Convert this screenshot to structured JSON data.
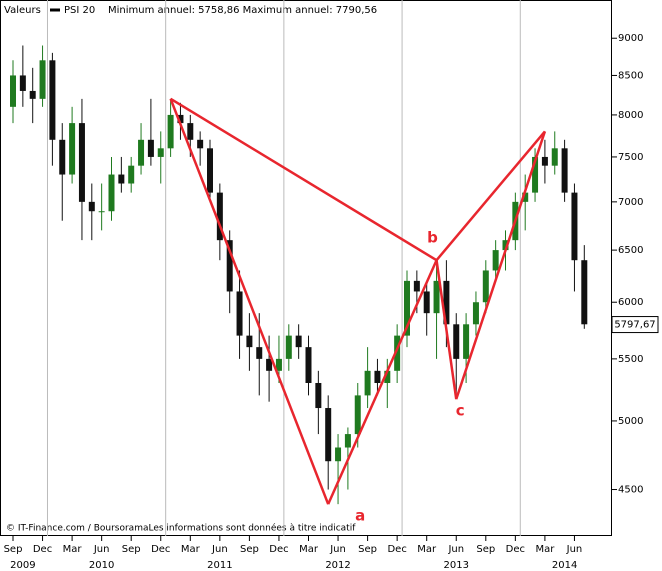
{
  "chart_data": {
    "type": "candlestick",
    "header": "Valeurs",
    "legend": "PSI 20",
    "subtitle": "Minimum annuel: 5758,86 Maximum annuel: 7790,56",
    "footer": "© IT-Finance.com / BoursoramaLes informations sont données à titre indicatif",
    "up_color": "#1f7a1f",
    "down_color": "#111111",
    "log_scale": true,
    "x": [
      "2009-09",
      "2009-10",
      "2009-11",
      "2009-12",
      "2010-01",
      "2010-02",
      "2010-03",
      "2010-04",
      "2010-05",
      "2010-06",
      "2010-07",
      "2010-08",
      "2010-09",
      "2010-10",
      "2010-11",
      "2010-12",
      "2011-01",
      "2011-02",
      "2011-03",
      "2011-04",
      "2011-05",
      "2011-06",
      "2011-07",
      "2011-08",
      "2011-09",
      "2011-10",
      "2011-11",
      "2011-12",
      "2012-01",
      "2012-02",
      "2012-03",
      "2012-04",
      "2012-05",
      "2012-06",
      "2012-07",
      "2012-08",
      "2012-09",
      "2012-10",
      "2012-11",
      "2012-12",
      "2013-01",
      "2013-02",
      "2013-03",
      "2013-04",
      "2013-05",
      "2013-06",
      "2013-07",
      "2013-08",
      "2013-09",
      "2013-10",
      "2013-11",
      "2013-12",
      "2014-01",
      "2014-02",
      "2014-03",
      "2014-04",
      "2014-05",
      "2014-06",
      "2014-07"
    ],
    "open": [
      8100,
      8500,
      8300,
      8200,
      8700,
      7700,
      7300,
      7900,
      7000,
      6900,
      6900,
      7300,
      7200,
      7400,
      7700,
      7500,
      7600,
      8000,
      7900,
      7700,
      7600,
      7100,
      6600,
      6100,
      5700,
      5600,
      5500,
      5400,
      5500,
      5700,
      5600,
      5300,
      5100,
      4700,
      4800,
      4900,
      5200,
      5400,
      5300,
      5400,
      5700,
      6200,
      6100,
      5900,
      6200,
      5800,
      5500,
      5800,
      6000,
      6300,
      6500,
      6600,
      7000,
      7100,
      7500,
      7400,
      7600,
      7100,
      6400
    ],
    "high": [
      8700,
      8900,
      8600,
      8900,
      8800,
      7900,
      8100,
      8200,
      7200,
      7200,
      7500,
      7500,
      7500,
      7900,
      8200,
      7800,
      8200,
      8150,
      8000,
      7800,
      7700,
      7200,
      6700,
      6300,
      5900,
      5900,
      5700,
      5700,
      5800,
      5800,
      5700,
      5400,
      5200,
      4900,
      4950,
      5300,
      5600,
      5500,
      5500,
      5800,
      6300,
      6300,
      6200,
      6350,
      6400,
      5900,
      5900,
      6100,
      6400,
      6600,
      6700,
      7100,
      7300,
      7600,
      7700,
      7800,
      7700,
      7200,
      6550
    ],
    "low": [
      7900,
      8100,
      7900,
      8100,
      7400,
      6800,
      7200,
      6600,
      6600,
      6700,
      6800,
      7100,
      7100,
      7300,
      7400,
      7200,
      7500,
      7700,
      7500,
      7400,
      7000,
      6400,
      5900,
      5500,
      5400,
      5200,
      5150,
      5300,
      5400,
      5500,
      5200,
      4900,
      4500,
      4400,
      4500,
      4800,
      5100,
      5200,
      5100,
      5300,
      5600,
      5900,
      5700,
      5500,
      5600,
      5200,
      5300,
      5700,
      5900,
      6200,
      6300,
      6500,
      6700,
      7000,
      7200,
      7300,
      7000,
      6100,
      5760
    ],
    "close": [
      8500,
      8300,
      8200,
      8700,
      7700,
      7300,
      7900,
      7000,
      6900,
      6900,
      7300,
      7200,
      7400,
      7700,
      7500,
      7600,
      8000,
      7900,
      7700,
      7600,
      7100,
      6600,
      6100,
      5700,
      5600,
      5500,
      5400,
      5500,
      5700,
      5600,
      5300,
      5100,
      4700,
      4800,
      4900,
      5200,
      5400,
      5300,
      5400,
      5700,
      6200,
      6100,
      5900,
      6200,
      5800,
      5500,
      5800,
      6000,
      6300,
      6500,
      6600,
      7000,
      7100,
      7500,
      7400,
      7600,
      7100,
      6400,
      5800
    ],
    "last_value": {
      "value": 5797.67,
      "label": "5797,67"
    },
    "ylim": [
      4190,
      9370
    ],
    "yticks": [
      4500,
      5000,
      5500,
      6000,
      6500,
      7000,
      7500,
      8000,
      8500,
      9000
    ],
    "xticks": [
      {
        "value": "2009-09",
        "label": "Sep"
      },
      {
        "value": "2009-12",
        "label": "Dec"
      },
      {
        "value": "2010-03",
        "label": "Mar"
      },
      {
        "value": "2010-06",
        "label": "Jun"
      },
      {
        "value": "2010-09",
        "label": "Sep"
      },
      {
        "value": "2010-12",
        "label": "Dec"
      },
      {
        "value": "2011-03",
        "label": "Mar"
      },
      {
        "value": "2011-06",
        "label": "Jun"
      },
      {
        "value": "2011-09",
        "label": "Sep"
      },
      {
        "value": "2011-12",
        "label": "Dec"
      },
      {
        "value": "2012-03",
        "label": "Mar"
      },
      {
        "value": "2012-06",
        "label": "Jun"
      },
      {
        "value": "2012-09",
        "label": "Sep"
      },
      {
        "value": "2012-12",
        "label": "Dec"
      },
      {
        "value": "2013-03",
        "label": "Mar"
      },
      {
        "value": "2013-06",
        "label": "Jun"
      },
      {
        "value": "2013-09",
        "label": "Sep"
      },
      {
        "value": "2013-12",
        "label": "Dec"
      },
      {
        "value": "2014-03",
        "label": "Mar"
      },
      {
        "value": "2014-06",
        "label": "Jun"
      }
    ],
    "year_labels": [
      {
        "value": "2009-10",
        "label": "2009"
      },
      {
        "value": "2010-06",
        "label": "2010"
      },
      {
        "value": "2011-06",
        "label": "2011"
      },
      {
        "value": "2012-06",
        "label": "2012"
      },
      {
        "value": "2013-06",
        "label": "2013"
      },
      {
        "value": "2014-05",
        "label": "2014"
      }
    ],
    "pattern": {
      "color": "#e8262e",
      "points": [
        {
          "x": "2011-01",
          "y": 8200
        },
        {
          "x": "2012-05",
          "y": 4400,
          "label": "a"
        },
        {
          "x": "2013-04",
          "y": 6400,
          "label": "b"
        },
        {
          "x": "2013-06",
          "y": 5170,
          "label": "c"
        },
        {
          "x": "2014-03",
          "y": 7800
        }
      ],
      "segments": [
        [
          0,
          1
        ],
        [
          1,
          2
        ],
        [
          2,
          3
        ],
        [
          3,
          4
        ],
        [
          0,
          2
        ],
        [
          2,
          4
        ]
      ]
    }
  }
}
